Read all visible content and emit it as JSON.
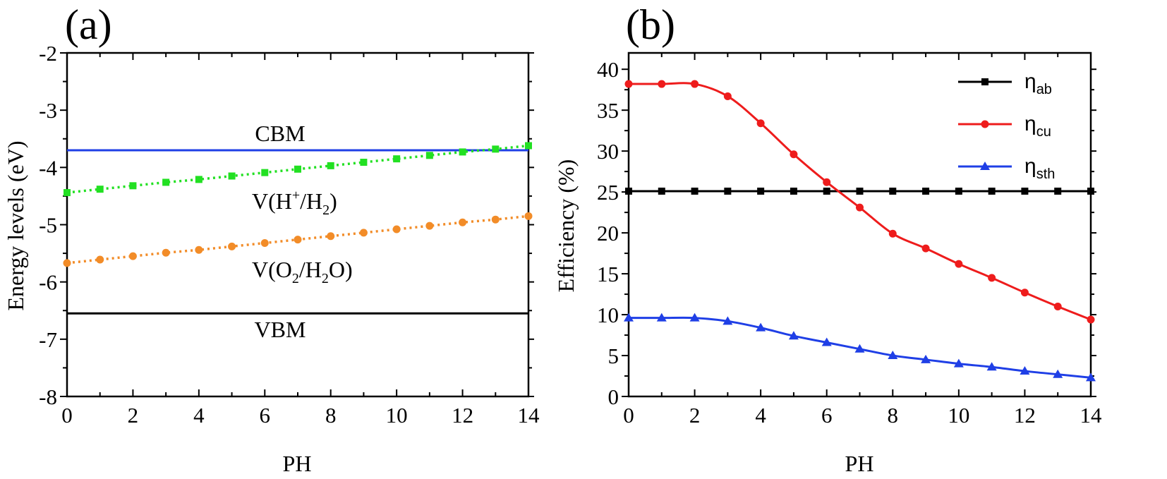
{
  "chart_data": [
    {
      "type": "line",
      "panel_label": "(a)",
      "xlabel": "PH",
      "ylabel": "Energy levels (eV)",
      "xlim": [
        0,
        14
      ],
      "ylim": [
        -8,
        -2
      ],
      "xticks": [
        0,
        2,
        4,
        6,
        8,
        10,
        12,
        14
      ],
      "yticks": [
        -2,
        -3,
        -4,
        -5,
        -6,
        -7,
        -8
      ],
      "grid": false,
      "series": [
        {
          "name": "CBM",
          "color": "#1f3fe6",
          "style": "solid",
          "marker": "none",
          "x": [
            0,
            14
          ],
          "y": [
            -3.7,
            -3.7
          ]
        },
        {
          "name": "V(H+/H2)",
          "color": "#22e022",
          "style": "dotted",
          "marker": "square",
          "x": [
            0,
            1,
            2,
            3,
            4,
            5,
            6,
            7,
            8,
            9,
            10,
            11,
            12,
            13,
            14
          ],
          "y": [
            -4.44,
            -4.38,
            -4.32,
            -4.26,
            -4.21,
            -4.15,
            -4.09,
            -4.03,
            -3.97,
            -3.91,
            -3.85,
            -3.79,
            -3.73,
            -3.68,
            -3.62
          ]
        },
        {
          "name": "V(O2/H2O)",
          "color": "#f28c28",
          "style": "dotted",
          "marker": "circle",
          "x": [
            0,
            1,
            2,
            3,
            4,
            5,
            6,
            7,
            8,
            9,
            10,
            11,
            12,
            13,
            14
          ],
          "y": [
            -5.67,
            -5.61,
            -5.55,
            -5.49,
            -5.44,
            -5.38,
            -5.32,
            -5.26,
            -5.2,
            -5.14,
            -5.08,
            -5.02,
            -4.96,
            -4.91,
            -4.85
          ]
        },
        {
          "name": "VBM",
          "color": "#000000",
          "style": "solid",
          "marker": "none",
          "x": [
            0,
            14
          ],
          "y": [
            -6.55,
            -6.55
          ]
        }
      ],
      "annotations": {
        "cbm": "CBM",
        "vh_prefix": "V(H",
        "vh_sup": "+",
        "vh_mid": "/H",
        "vh_sub": "2",
        "vh_suffix": ")",
        "vo_prefix": "V(O",
        "vo_sub1": "2",
        "vo_mid": "/H",
        "vo_sub2": "2",
        "vo_suffix": "O)",
        "vbm": "VBM"
      }
    },
    {
      "type": "line",
      "panel_label": "(b)",
      "xlabel": "PH",
      "ylabel": "Efficiency (%)",
      "xlim": [
        0,
        14
      ],
      "ylim": [
        0,
        42
      ],
      "xticks": [
        0,
        2,
        4,
        6,
        8,
        10,
        12,
        14
      ],
      "yticks": [
        0,
        5,
        10,
        15,
        20,
        25,
        30,
        35,
        40
      ],
      "grid": false,
      "legend_position": "top-right",
      "series": [
        {
          "name": "η",
          "sub": "ab",
          "color": "#000000",
          "marker": "square",
          "x": [
            0,
            1,
            2,
            3,
            4,
            5,
            6,
            7,
            8,
            9,
            10,
            11,
            12,
            13,
            14
          ],
          "y": [
            25.1,
            25.1,
            25.1,
            25.1,
            25.1,
            25.1,
            25.1,
            25.1,
            25.1,
            25.1,
            25.1,
            25.1,
            25.1,
            25.1,
            25.1
          ]
        },
        {
          "name": "η",
          "sub": "cu",
          "color": "#ee1c1c",
          "marker": "circle",
          "x": [
            0,
            1,
            2,
            3,
            4,
            5,
            6,
            7,
            8,
            9,
            10,
            11,
            12,
            13,
            14
          ],
          "y": [
            38.2,
            38.2,
            38.2,
            36.7,
            33.4,
            29.6,
            26.2,
            23.1,
            19.9,
            18.1,
            16.2,
            14.5,
            12.7,
            11.0,
            9.4
          ]
        },
        {
          "name": "η",
          "sub": "sth",
          "color": "#1f3fe6",
          "marker": "triangle",
          "x": [
            0,
            1,
            2,
            3,
            4,
            5,
            6,
            7,
            8,
            9,
            10,
            11,
            12,
            13,
            14
          ],
          "y": [
            9.6,
            9.6,
            9.6,
            9.2,
            8.4,
            7.4,
            6.6,
            5.8,
            5.0,
            4.5,
            4.0,
            3.6,
            3.1,
            2.7,
            2.3
          ]
        }
      ]
    }
  ]
}
